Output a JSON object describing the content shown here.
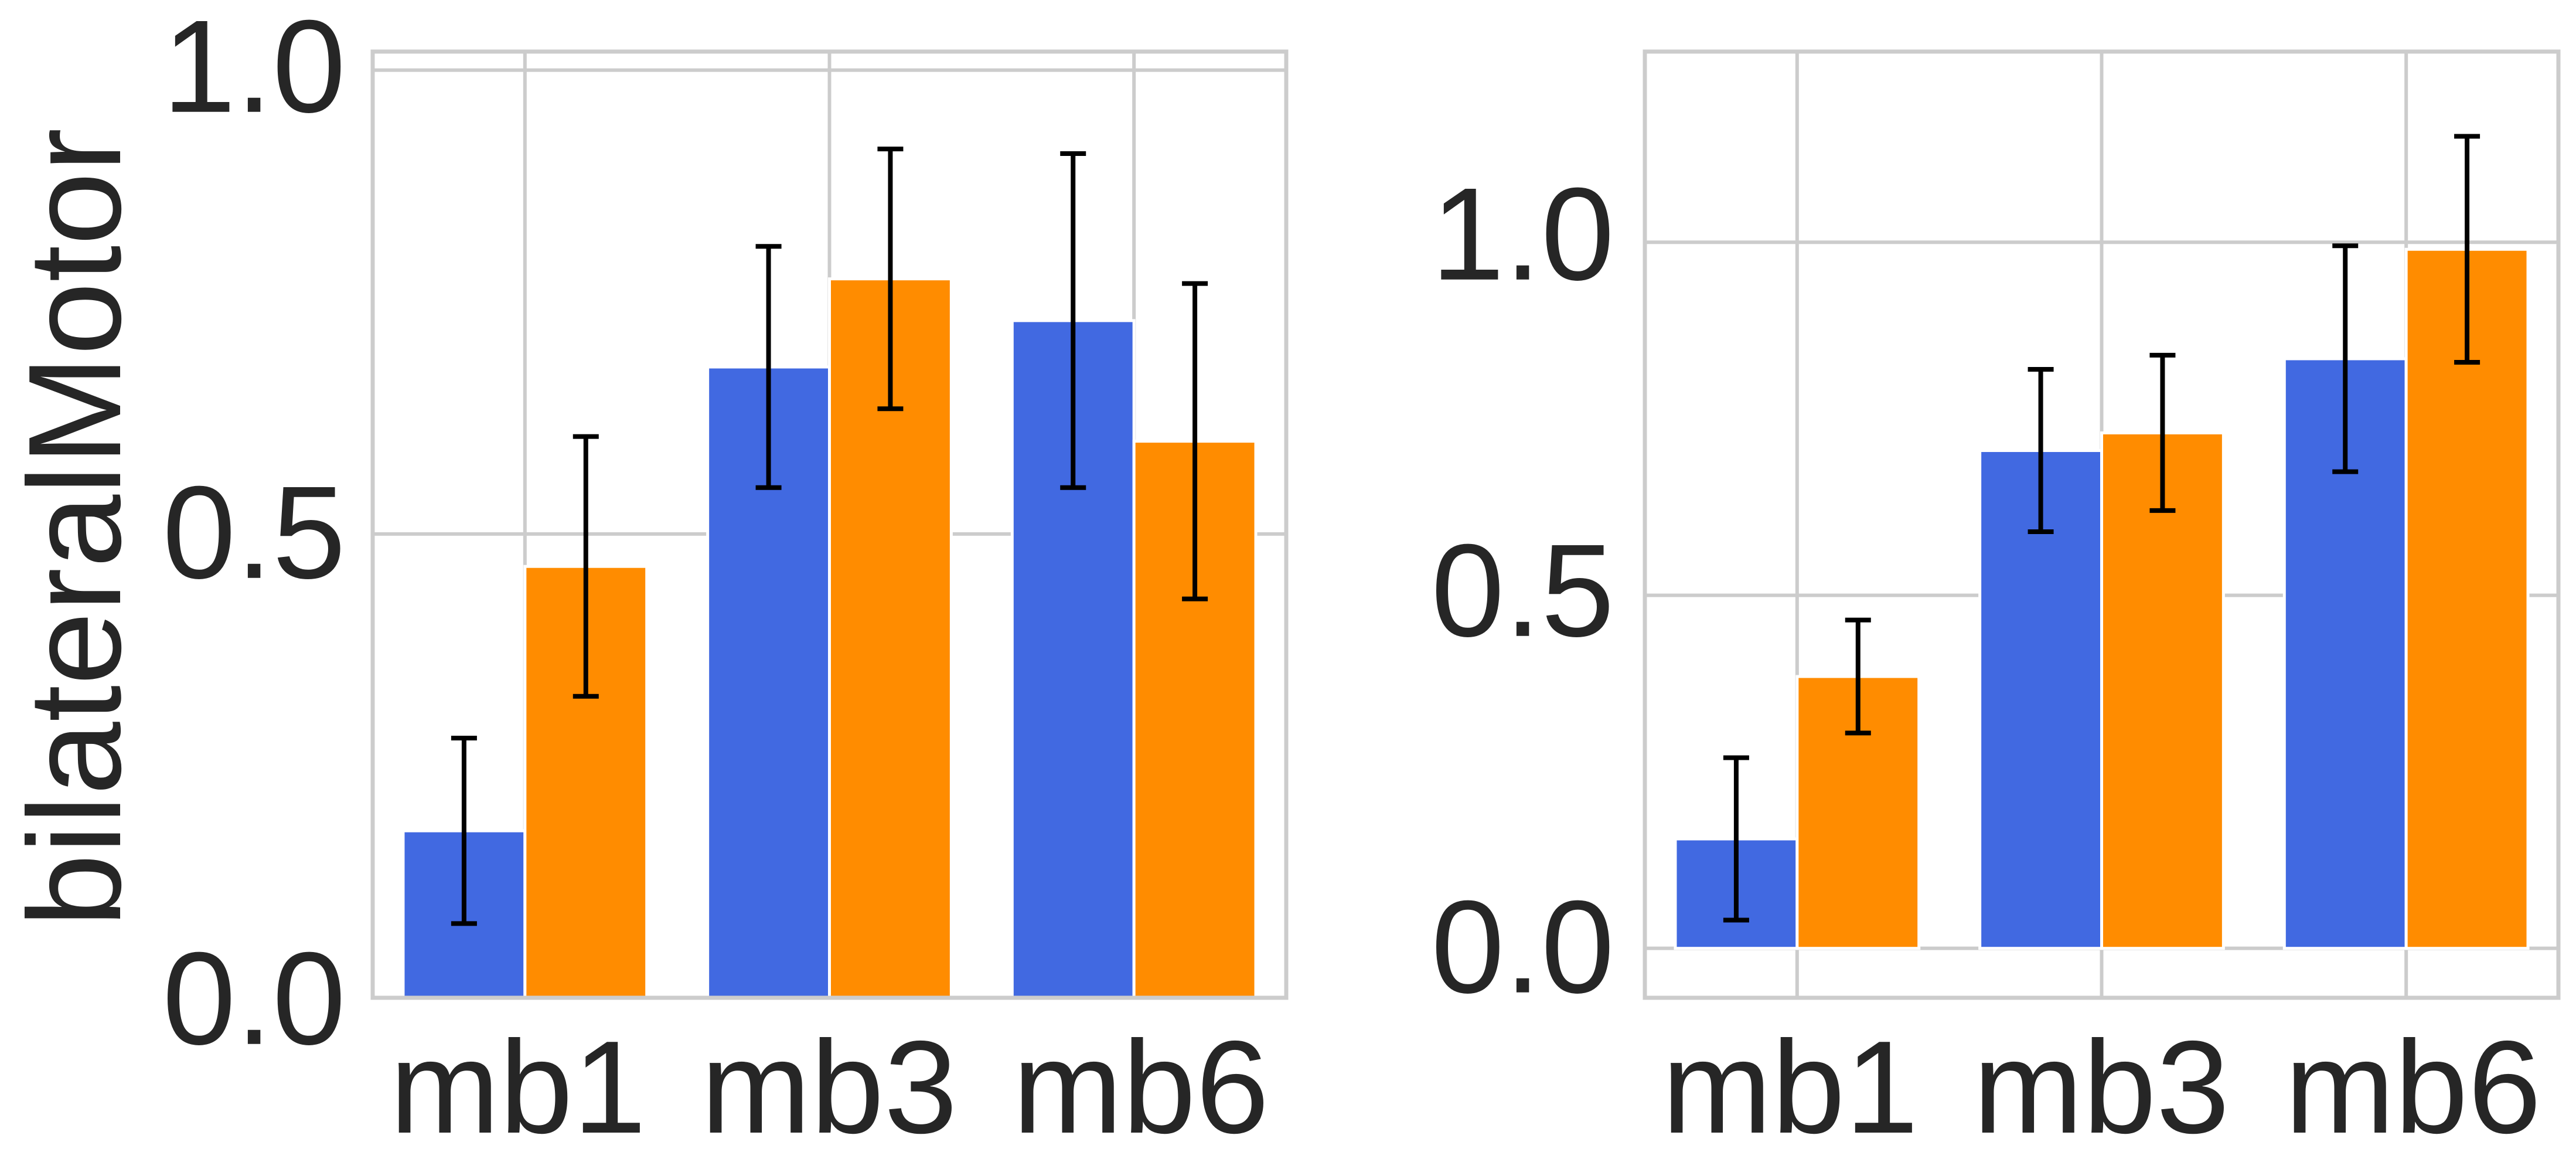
{
  "chart_data": [
    {
      "type": "bar",
      "ylabel": "bilateralMotor",
      "xlabel": "",
      "categories": [
        "mb1",
        "mb3",
        "mb6"
      ],
      "ylim": [
        0,
        1.02
      ],
      "yticks": [
        "0.0",
        "0.5",
        "1.0"
      ],
      "grid": true,
      "series": [
        {
          "color": "#4169E1",
          "values": [
            0.18,
            0.68,
            0.73
          ],
          "error": [
            0.1,
            0.13,
            0.18
          ]
        },
        {
          "color": "#FF8C00",
          "values": [
            0.465,
            0.775,
            0.6
          ],
          "error": [
            0.14,
            0.14,
            0.17
          ]
        }
      ]
    },
    {
      "type": "bar",
      "ylabel": "",
      "xlabel": "",
      "categories": [
        "mb1",
        "mb3",
        "mb6"
      ],
      "ylim": [
        -0.07,
        1.27
      ],
      "yticks": [
        "0.0",
        "0.5",
        "1.0"
      ],
      "grid": true,
      "series": [
        {
          "color": "#4169E1",
          "values": [
            0.155,
            0.705,
            0.835
          ],
          "error": [
            0.115,
            0.115,
            0.16
          ]
        },
        {
          "color": "#FF8C00",
          "values": [
            0.385,
            0.73,
            0.99
          ],
          "error": [
            0.08,
            0.11,
            0.16
          ]
        }
      ]
    }
  ]
}
